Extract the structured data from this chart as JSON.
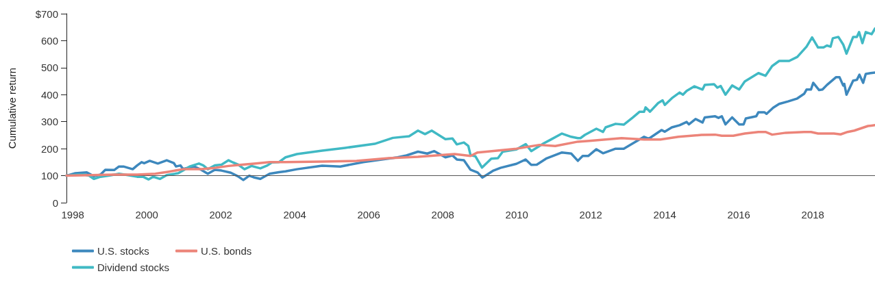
{
  "chart_data": {
    "type": "line",
    "ylabel": "Cumulative return",
    "xlim": [
      1997.83,
      2019.68
    ],
    "xticks": [
      1998,
      2000,
      2002,
      2004,
      2006,
      2008,
      2010,
      2012,
      2014,
      2016,
      2018
    ],
    "ylim": [
      0,
      700
    ],
    "yticks": [
      0,
      100,
      200,
      300,
      400,
      500,
      600,
      {
        "value": 700,
        "label": "$700"
      }
    ],
    "grid": false,
    "legend": "bottom left",
    "ref_lines": [
      {
        "axis": "y",
        "value": 100,
        "color": "#555555"
      }
    ],
    "series": [
      {
        "name": "U.S. stocks",
        "color": "#3d88bd",
        "x": [
          1997.83,
          1998.07,
          1998.38,
          1998.57,
          1998.75,
          1998.88,
          1999.12,
          1999.25,
          1999.37,
          1999.62,
          1999.74,
          1999.86,
          1999.93,
          2000.08,
          2000.3,
          2000.54,
          2000.73,
          2000.79,
          2000.91,
          2000.98,
          2001.28,
          2001.47,
          2001.65,
          2001.84,
          2002.02,
          2002.27,
          2002.46,
          2002.61,
          2002.77,
          2002.89,
          2003.07,
          2003.32,
          2003.57,
          2003.75,
          2004.06,
          2004.74,
          2005.23,
          2005.85,
          2006.78,
          2007.02,
          2007.33,
          2007.58,
          2007.77,
          2008.07,
          2008.26,
          2008.38,
          2008.57,
          2008.75,
          2008.94,
          2009.07,
          2009.37,
          2009.56,
          2009.99,
          2010.24,
          2010.39,
          2010.54,
          2010.79,
          2011.22,
          2011.47,
          2011.65,
          2011.78,
          2011.93,
          2012.15,
          2012.33,
          2012.67,
          2012.89,
          2013.14,
          2013.44,
          2013.57,
          2013.91,
          2014.0,
          2014.19,
          2014.4,
          2014.59,
          2014.65,
          2014.83,
          2015.02,
          2015.08,
          2015.36,
          2015.45,
          2015.54,
          2015.64,
          2015.82,
          2016.01,
          2016.13,
          2016.19,
          2016.47,
          2016.53,
          2016.69,
          2016.75,
          2016.93,
          2017.09,
          2017.33,
          2017.58,
          2017.77,
          2017.83,
          2017.95,
          2018.01,
          2018.17,
          2018.26,
          2018.38,
          2018.63,
          2018.72,
          2018.82,
          2018.85,
          2018.91,
          2019.09,
          2019.19,
          2019.26,
          2019.36,
          2019.43,
          2019.56,
          2019.68
        ],
        "values": [
          100,
          109,
          112,
          98,
          104,
          122,
          121,
          134,
          134,
          124,
          138,
          150,
          146,
          155,
          145,
          157,
          147,
          134,
          138,
          125,
          134,
          122,
          107,
          122,
          119,
          111,
          98,
          84,
          100,
          94,
          88,
          107,
          113,
          116,
          124,
          137,
          134,
          150,
          168,
          175,
          189,
          182,
          191,
          168,
          175,
          160,
          157,
          122,
          112,
          93,
          119,
          129,
          144,
          160,
          140,
          141,
          163,
          186,
          182,
          155,
          173,
          173,
          198,
          183,
          200,
          200,
          220,
          244,
          237,
          269,
          263,
          279,
          287,
          299,
          290,
          310,
          297,
          316,
          320,
          314,
          320,
          290,
          316,
          290,
          290,
          312,
          320,
          335,
          335,
          329,
          352,
          366,
          375,
          386,
          404,
          419,
          419,
          444,
          417,
          419,
          436,
          465,
          465,
          434,
          440,
          400,
          452,
          455,
          474,
          444,
          477,
          480,
          482
        ]
      },
      {
        "name": "Dividend stocks",
        "color": "#40b9c4",
        "x": [
          1997.83,
          1998.14,
          1998.32,
          1998.44,
          1998.57,
          1998.75,
          1999.0,
          1999.25,
          1999.49,
          1999.74,
          1999.9,
          2000.05,
          2000.17,
          2000.36,
          2000.54,
          2000.85,
          2000.98,
          2001.16,
          2001.41,
          2001.53,
          2001.65,
          2001.84,
          2002.02,
          2002.21,
          2002.33,
          2002.46,
          2002.64,
          2002.83,
          2003.07,
          2003.26,
          2003.38,
          2003.57,
          2003.75,
          2004.06,
          2004.74,
          2005.36,
          2006.16,
          2006.65,
          2007.09,
          2007.33,
          2007.52,
          2007.7,
          2008.07,
          2008.26,
          2008.38,
          2008.57,
          2008.69,
          2008.75,
          2008.88,
          2009.06,
          2009.31,
          2009.49,
          2009.62,
          2009.99,
          2010.24,
          2010.39,
          2010.73,
          2010.91,
          2011.22,
          2011.47,
          2011.65,
          2011.72,
          2011.84,
          2012.15,
          2012.33,
          2012.4,
          2012.67,
          2012.89,
          2013.14,
          2013.32,
          2013.44,
          2013.48,
          2013.6,
          2013.82,
          2013.94,
          2014.0,
          2014.19,
          2014.4,
          2014.49,
          2014.59,
          2014.8,
          2015.02,
          2015.08,
          2015.33,
          2015.42,
          2015.51,
          2015.64,
          2015.82,
          2016.01,
          2016.16,
          2016.53,
          2016.72,
          2016.9,
          2017.09,
          2017.36,
          2017.58,
          2017.83,
          2017.98,
          2018.14,
          2018.29,
          2018.38,
          2018.48,
          2018.54,
          2018.69,
          2018.82,
          2018.91,
          2019.09,
          2019.19,
          2019.25,
          2019.34,
          2019.43,
          2019.59,
          2019.68
        ],
        "values": [
          100,
          104,
          104,
          100,
          88,
          96,
          101,
          107,
          102,
          96,
          96,
          86,
          96,
          88,
          102,
          109,
          119,
          134,
          145,
          138,
          124,
          138,
          141,
          157,
          149,
          142,
          124,
          136,
          127,
          138,
          149,
          150,
          168,
          180,
          193,
          203,
          218,
          240,
          246,
          267,
          254,
          267,
          235,
          238,
          216,
          223,
          210,
          176,
          172,
          130,
          163,
          165,
          189,
          197,
          217,
          191,
          220,
          233,
          256,
          244,
          239,
          239,
          251,
          274,
          262,
          279,
          292,
          289,
          316,
          337,
          337,
          353,
          337,
          369,
          379,
          362,
          387,
          408,
          400,
          414,
          431,
          419,
          436,
          439,
          426,
          432,
          400,
          434,
          419,
          449,
          480,
          470,
          506,
          525,
          525,
          540,
          578,
          612,
          575,
          575,
          582,
          578,
          609,
          614,
          586,
          552,
          614,
          614,
          632,
          591,
          632,
          624,
          645
        ]
      },
      {
        "name": "U.S. bonds",
        "color": "#ec8479",
        "x": [
          1997.83,
          1998.51,
          1999.12,
          1999.74,
          2000.23,
          2000.6,
          2000.98,
          2001.47,
          2001.84,
          2002.21,
          2002.58,
          2002.95,
          2003.32,
          2003.75,
          2004.74,
          2005.67,
          2006.53,
          2007.33,
          2008.32,
          2008.75,
          2008.94,
          2009.99,
          2010.61,
          2011.04,
          2011.65,
          2011.96,
          2012.83,
          2013.44,
          2013.88,
          2014.37,
          2014.99,
          2015.36,
          2015.54,
          2015.85,
          2016.16,
          2016.53,
          2016.72,
          2016.9,
          2017.27,
          2017.77,
          2017.95,
          2018.14,
          2018.57,
          2018.75,
          2018.94,
          2019.12,
          2019.49,
          2019.68
        ],
        "values": [
          100,
          102,
          104,
          104,
          107,
          115,
          124,
          124,
          129,
          136,
          141,
          145,
          150,
          150,
          152,
          155,
          165,
          170,
          180,
          173,
          186,
          200,
          214,
          210,
          226,
          229,
          239,
          234,
          234,
          244,
          251,
          252,
          248,
          248,
          256,
          262,
          262,
          252,
          259,
          262,
          262,
          256,
          256,
          253,
          262,
          267,
          284,
          287
        ]
      }
    ]
  }
}
